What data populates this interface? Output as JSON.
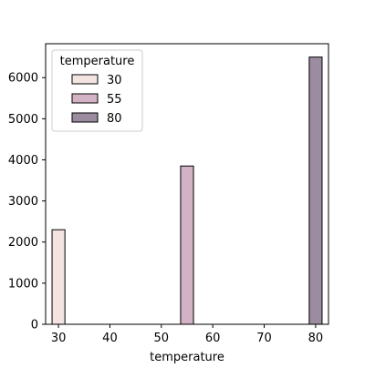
{
  "chart_data": {
    "type": "bar",
    "title": "",
    "xlabel": "temperature",
    "ylabel": "",
    "xlim": [
      27.5,
      82.5
    ],
    "ylim": [
      0,
      6825
    ],
    "x_ticks": [
      30,
      40,
      50,
      60,
      70,
      80
    ],
    "y_ticks": [
      0,
      1000,
      2000,
      3000,
      4000,
      5000,
      6000
    ],
    "grid": false,
    "legend": {
      "title": "temperature",
      "placement": "top-left"
    },
    "bin_width": 2.5,
    "series": [
      {
        "name": "30",
        "x": 30,
        "value": 2300,
        "color": "#f3e4e2"
      },
      {
        "name": "55",
        "x": 55,
        "value": 3850,
        "color": "#d3b2c5"
      },
      {
        "name": "80",
        "x": 80,
        "value": 6500,
        "color": "#9b8c9f"
      }
    ]
  }
}
